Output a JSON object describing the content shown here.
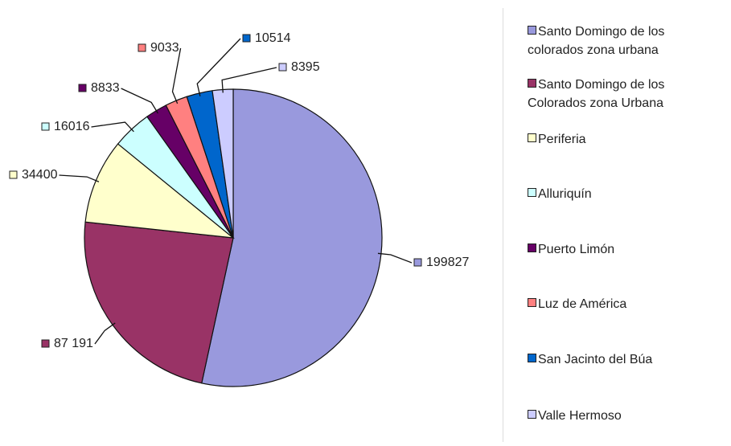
{
  "chart_data": {
    "type": "pie",
    "categories": [
      "Santo Domingo de los colorados zona urbana",
      "Santo Domingo de los Colorados zona Urbana",
      "Periferia",
      "Alluriquín",
      "Puerto Limón",
      "Luz de América",
      "San Jacinto del Búa",
      "Valle Hermoso"
    ],
    "values": [
      199827,
      87191,
      34400,
      16016,
      8833,
      9033,
      10514,
      8395
    ],
    "value_labels": [
      "199827",
      "87 191",
      "34400",
      "16016",
      "8833",
      "9033",
      "10514",
      "8395"
    ],
    "colors": [
      "#9999dd",
      "#993366",
      "#ffffcc",
      "#ccffff",
      "#660066",
      "#ff8080",
      "#0066cc",
      "#ccccff"
    ],
    "legend": "right"
  }
}
